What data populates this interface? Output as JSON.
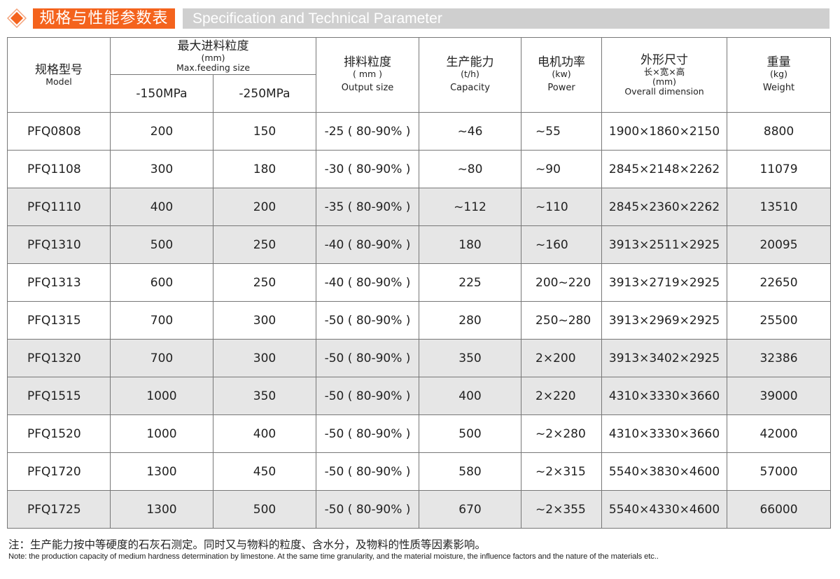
{
  "header": {
    "icon": "diamond-icon",
    "title_cn": "规格与性能参数表",
    "title_en": "Specification and Technical Parameter",
    "accent_color": "#f4631d",
    "bar_color": "#cfcfcf"
  },
  "columns": {
    "model": {
      "cn": "规格型号",
      "en": "Model"
    },
    "feed": {
      "cn": "最大进料粒度",
      "unit": "(mm)",
      "en": "Max.feeding size",
      "sub1": "-150MPa",
      "sub2": "-250MPa"
    },
    "output": {
      "cn": "排料粒度",
      "unit": "( mm )",
      "en": "Output size"
    },
    "capacity": {
      "cn": "生产能力",
      "unit": "(t/h)",
      "en": "Capacity"
    },
    "power": {
      "cn": "电机功率",
      "unit": "(kw)",
      "en": "Power"
    },
    "dimension": {
      "cn": "外形尺寸",
      "sub": "长×宽×高",
      "unit": "(mm)",
      "en": "Overall dimension"
    },
    "weight": {
      "cn": "重量",
      "unit": "(kg)",
      "en": "Weight"
    }
  },
  "rows": [
    [
      "PFQ0808",
      "200",
      "150",
      "-25 ( 80-90% )",
      "~46",
      "~55",
      "1900×1860×2150",
      "8800"
    ],
    [
      "PFQ1108",
      "300",
      "180",
      "-30 ( 80-90% )",
      "~80",
      "~90",
      "2845×2148×2262",
      "11079"
    ],
    [
      "PFQ1110",
      "400",
      "200",
      "-35 ( 80-90% )",
      "~112",
      "~110",
      "2845×2360×2262",
      "13510"
    ],
    [
      "PFQ1310",
      "500",
      "250",
      "-40 ( 80-90% )",
      "180",
      "~160",
      "3913×2511×2925",
      "20095"
    ],
    [
      "PFQ1313",
      "600",
      "250",
      "-40 ( 80-90% )",
      "225",
      "200~220",
      "3913×2719×2925",
      "22650"
    ],
    [
      "PFQ1315",
      "700",
      "300",
      "-50 ( 80-90% )",
      "280",
      "250~280",
      "3913×2969×2925",
      "25500"
    ],
    [
      "PFQ1320",
      "700",
      "300",
      "-50 ( 80-90% )",
      "350",
      "2×200",
      "3913×3402×2925",
      "32386"
    ],
    [
      "PFQ1515",
      "1000",
      "350",
      "-50 ( 80-90% )",
      "400",
      "2×220",
      "4310×3330×3660",
      "39000"
    ],
    [
      "PFQ1520",
      "1000",
      "400",
      "-50 ( 80-90% )",
      "500",
      "~2×280",
      "4310×3330×3660",
      "42000"
    ],
    [
      "PFQ1720",
      "1300",
      "450",
      "-50 ( 80-90% )",
      "580",
      "~2×315",
      "5540×3830×4600",
      "57000"
    ],
    [
      "PFQ1725",
      "1300",
      "500",
      "-50 ( 80-90% )",
      "670",
      "~2×355",
      "5540×4330×4600",
      "66000"
    ]
  ],
  "shaded_rows": [
    2,
    3,
    6,
    7,
    10
  ],
  "shade_color": "#e6e6e6",
  "note": {
    "cn": "注：生产能力按中等硬度的石灰石测定。同时又与物料的粒度、含水分，及物料的性质等因素影响。",
    "en": "Note: the production capacity of medium hardness determination by limestone. At the same time granularity, and the material moisture, the influence factors and the nature of the materials etc.."
  }
}
